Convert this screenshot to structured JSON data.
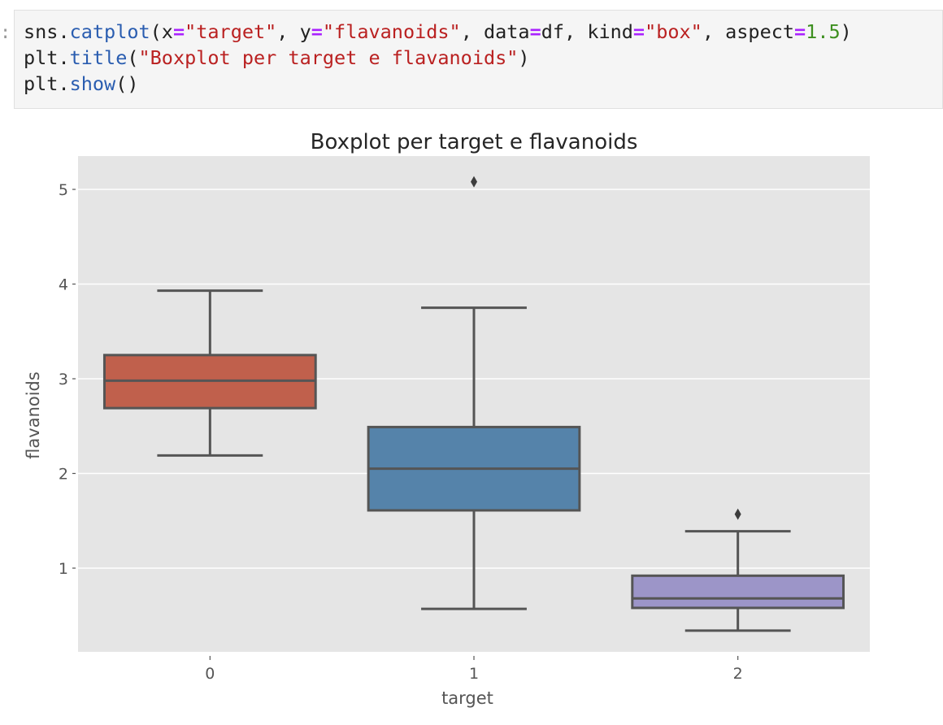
{
  "cell": {
    "prompt": ":",
    "lines": [
      [
        {
          "t": "sns",
          "c": "plain"
        },
        {
          "t": ".",
          "c": "plain"
        },
        {
          "t": "catplot",
          "c": "fn"
        },
        {
          "t": "(x",
          "c": "plain"
        },
        {
          "t": "=",
          "c": "op"
        },
        {
          "t": "\"target\"",
          "c": "str"
        },
        {
          "t": ", y",
          "c": "plain"
        },
        {
          "t": "=",
          "c": "op"
        },
        {
          "t": "\"flavanoids\"",
          "c": "str"
        },
        {
          "t": ", data",
          "c": "plain"
        },
        {
          "t": "=",
          "c": "op"
        },
        {
          "t": "df, kind",
          "c": "plain"
        },
        {
          "t": "=",
          "c": "op"
        },
        {
          "t": "\"box\"",
          "c": "str"
        },
        {
          "t": ", aspect",
          "c": "plain"
        },
        {
          "t": "=",
          "c": "op"
        },
        {
          "t": "1.5",
          "c": "num"
        },
        {
          "t": ")",
          "c": "plain"
        }
      ],
      [
        {
          "t": "plt",
          "c": "plain"
        },
        {
          "t": ".",
          "c": "plain"
        },
        {
          "t": "title",
          "c": "fn"
        },
        {
          "t": "(",
          "c": "plain"
        },
        {
          "t": "\"Boxplot per target e flavanoids\"",
          "c": "str"
        },
        {
          "t": ")",
          "c": "plain"
        }
      ],
      [
        {
          "t": "plt",
          "c": "plain"
        },
        {
          "t": ".",
          "c": "plain"
        },
        {
          "t": "show",
          "c": "fn"
        },
        {
          "t": "()",
          "c": "plain"
        }
      ]
    ]
  },
  "chart_data": {
    "type": "box",
    "title": "Boxplot per target e flavanoids",
    "xlabel": "target",
    "ylabel": "flavanoids",
    "categories": [
      "0",
      "1",
      "2"
    ],
    "yticks": [
      1,
      2,
      3,
      4,
      5
    ],
    "ylim": [
      0.0,
      5.35
    ],
    "grid": true,
    "legend": null,
    "style": "ggplot",
    "boxes": [
      {
        "category": "0",
        "color": "#c0604c",
        "whisker_low": 2.19,
        "q1": 2.69,
        "median": 2.98,
        "q3": 3.25,
        "whisker_high": 3.93,
        "outliers": []
      },
      {
        "category": "1",
        "color": "#5583aa",
        "whisker_low": 0.57,
        "q1": 1.61,
        "median": 2.05,
        "q3": 2.49,
        "whisker_high": 3.75,
        "outliers": [
          5.08
        ]
      },
      {
        "category": "2",
        "color": "#9c95c8",
        "whisker_low": 0.34,
        "q1": 0.58,
        "median": 0.68,
        "q3": 0.92,
        "whisker_high": 1.39,
        "outliers": [
          1.57
        ]
      }
    ]
  },
  "colors": {
    "plot_bg": "#e5e5e5",
    "grid": "#ffffff",
    "box_line": "#555555",
    "axis_text": "#555555"
  }
}
